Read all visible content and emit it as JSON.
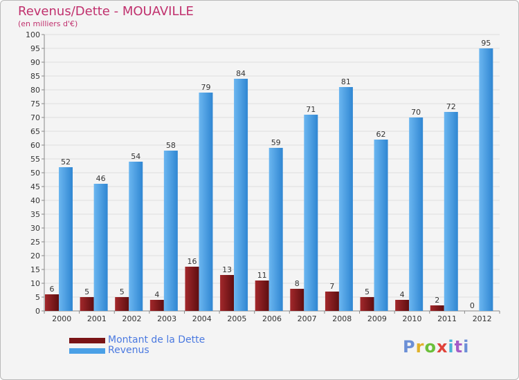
{
  "header": {
    "title": "Revenus/Dette - MOUAVILLE",
    "subtitle": "(en milliers d'€)"
  },
  "logo": {
    "text": "Proxiti",
    "colors": [
      "#6b8fd6",
      "#e0b12a",
      "#6bbf3a",
      "#e0433a",
      "#4ab3d6",
      "#a35cc7"
    ]
  },
  "chart_data": {
    "type": "bar",
    "title": "Revenus/Dette - MOUAVILLE",
    "subtitle": "(en milliers d'€)",
    "xlabel": "",
    "ylabel": "",
    "categories": [
      "2000",
      "2001",
      "2002",
      "2003",
      "2004",
      "2005",
      "2006",
      "2007",
      "2008",
      "2009",
      "2010",
      "2011",
      "2012"
    ],
    "series": [
      {
        "name": "Montant de la Dette",
        "color": "#7a1416",
        "values": [
          6,
          5,
          5,
          4,
          16,
          13,
          11,
          8,
          7,
          5,
          4,
          2,
          0
        ]
      },
      {
        "name": "Revenus",
        "color": "#4aa0e6",
        "values": [
          52,
          46,
          54,
          58,
          79,
          84,
          59,
          71,
          81,
          62,
          70,
          72,
          95
        ]
      }
    ],
    "ylim": [
      0,
      100
    ],
    "yticks": [
      0,
      5,
      10,
      15,
      20,
      25,
      30,
      35,
      40,
      45,
      50,
      55,
      60,
      65,
      70,
      75,
      80,
      85,
      90,
      95,
      100
    ],
    "grid": true,
    "legend": "bottom-left",
    "data_labels": true
  }
}
